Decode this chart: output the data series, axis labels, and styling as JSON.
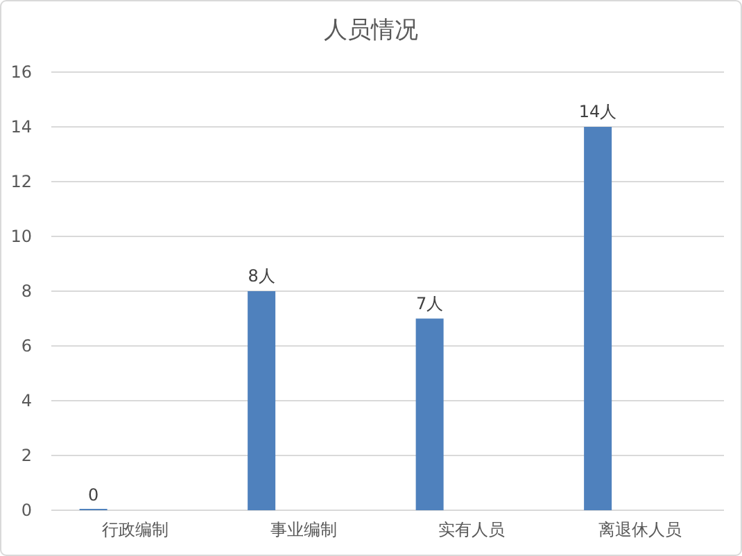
{
  "chart_data": {
    "type": "bar",
    "title": "人员情况",
    "categories": [
      "行政编制",
      "事业编制",
      "实有人员",
      "离退休人员"
    ],
    "series": [
      {
        "color": "#4f81bd",
        "values": [
          0,
          8,
          7,
          14
        ],
        "value_labels": [
          "0",
          "8人",
          "7人",
          "14人"
        ]
      }
    ],
    "ylim": [
      0,
      16
    ],
    "yticks": [
      0,
      2,
      4,
      6,
      8,
      10,
      12,
      14,
      16
    ],
    "grid": "y"
  }
}
